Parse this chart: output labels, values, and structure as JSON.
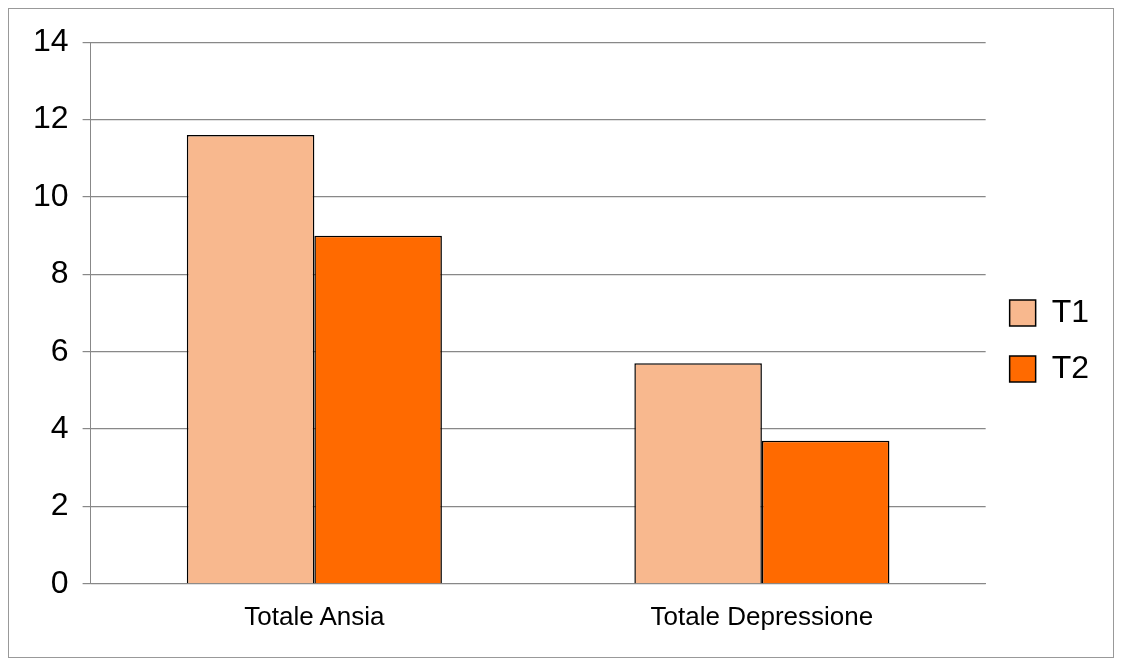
{
  "chart_data": {
    "type": "bar",
    "categories": [
      "Totale Ansia",
      "Totale Depressione"
    ],
    "series": [
      {
        "name": "T1",
        "color": "#f8b88e",
        "values": [
          11.6,
          5.7
        ]
      },
      {
        "name": "T2",
        "color": "#ff6a00",
        "values": [
          9.0,
          3.7
        ]
      }
    ],
    "ylim": [
      0,
      14
    ],
    "yticks": [
      0,
      2,
      4,
      6,
      8,
      10,
      12,
      14
    ],
    "grid": "y",
    "legend": "right"
  }
}
